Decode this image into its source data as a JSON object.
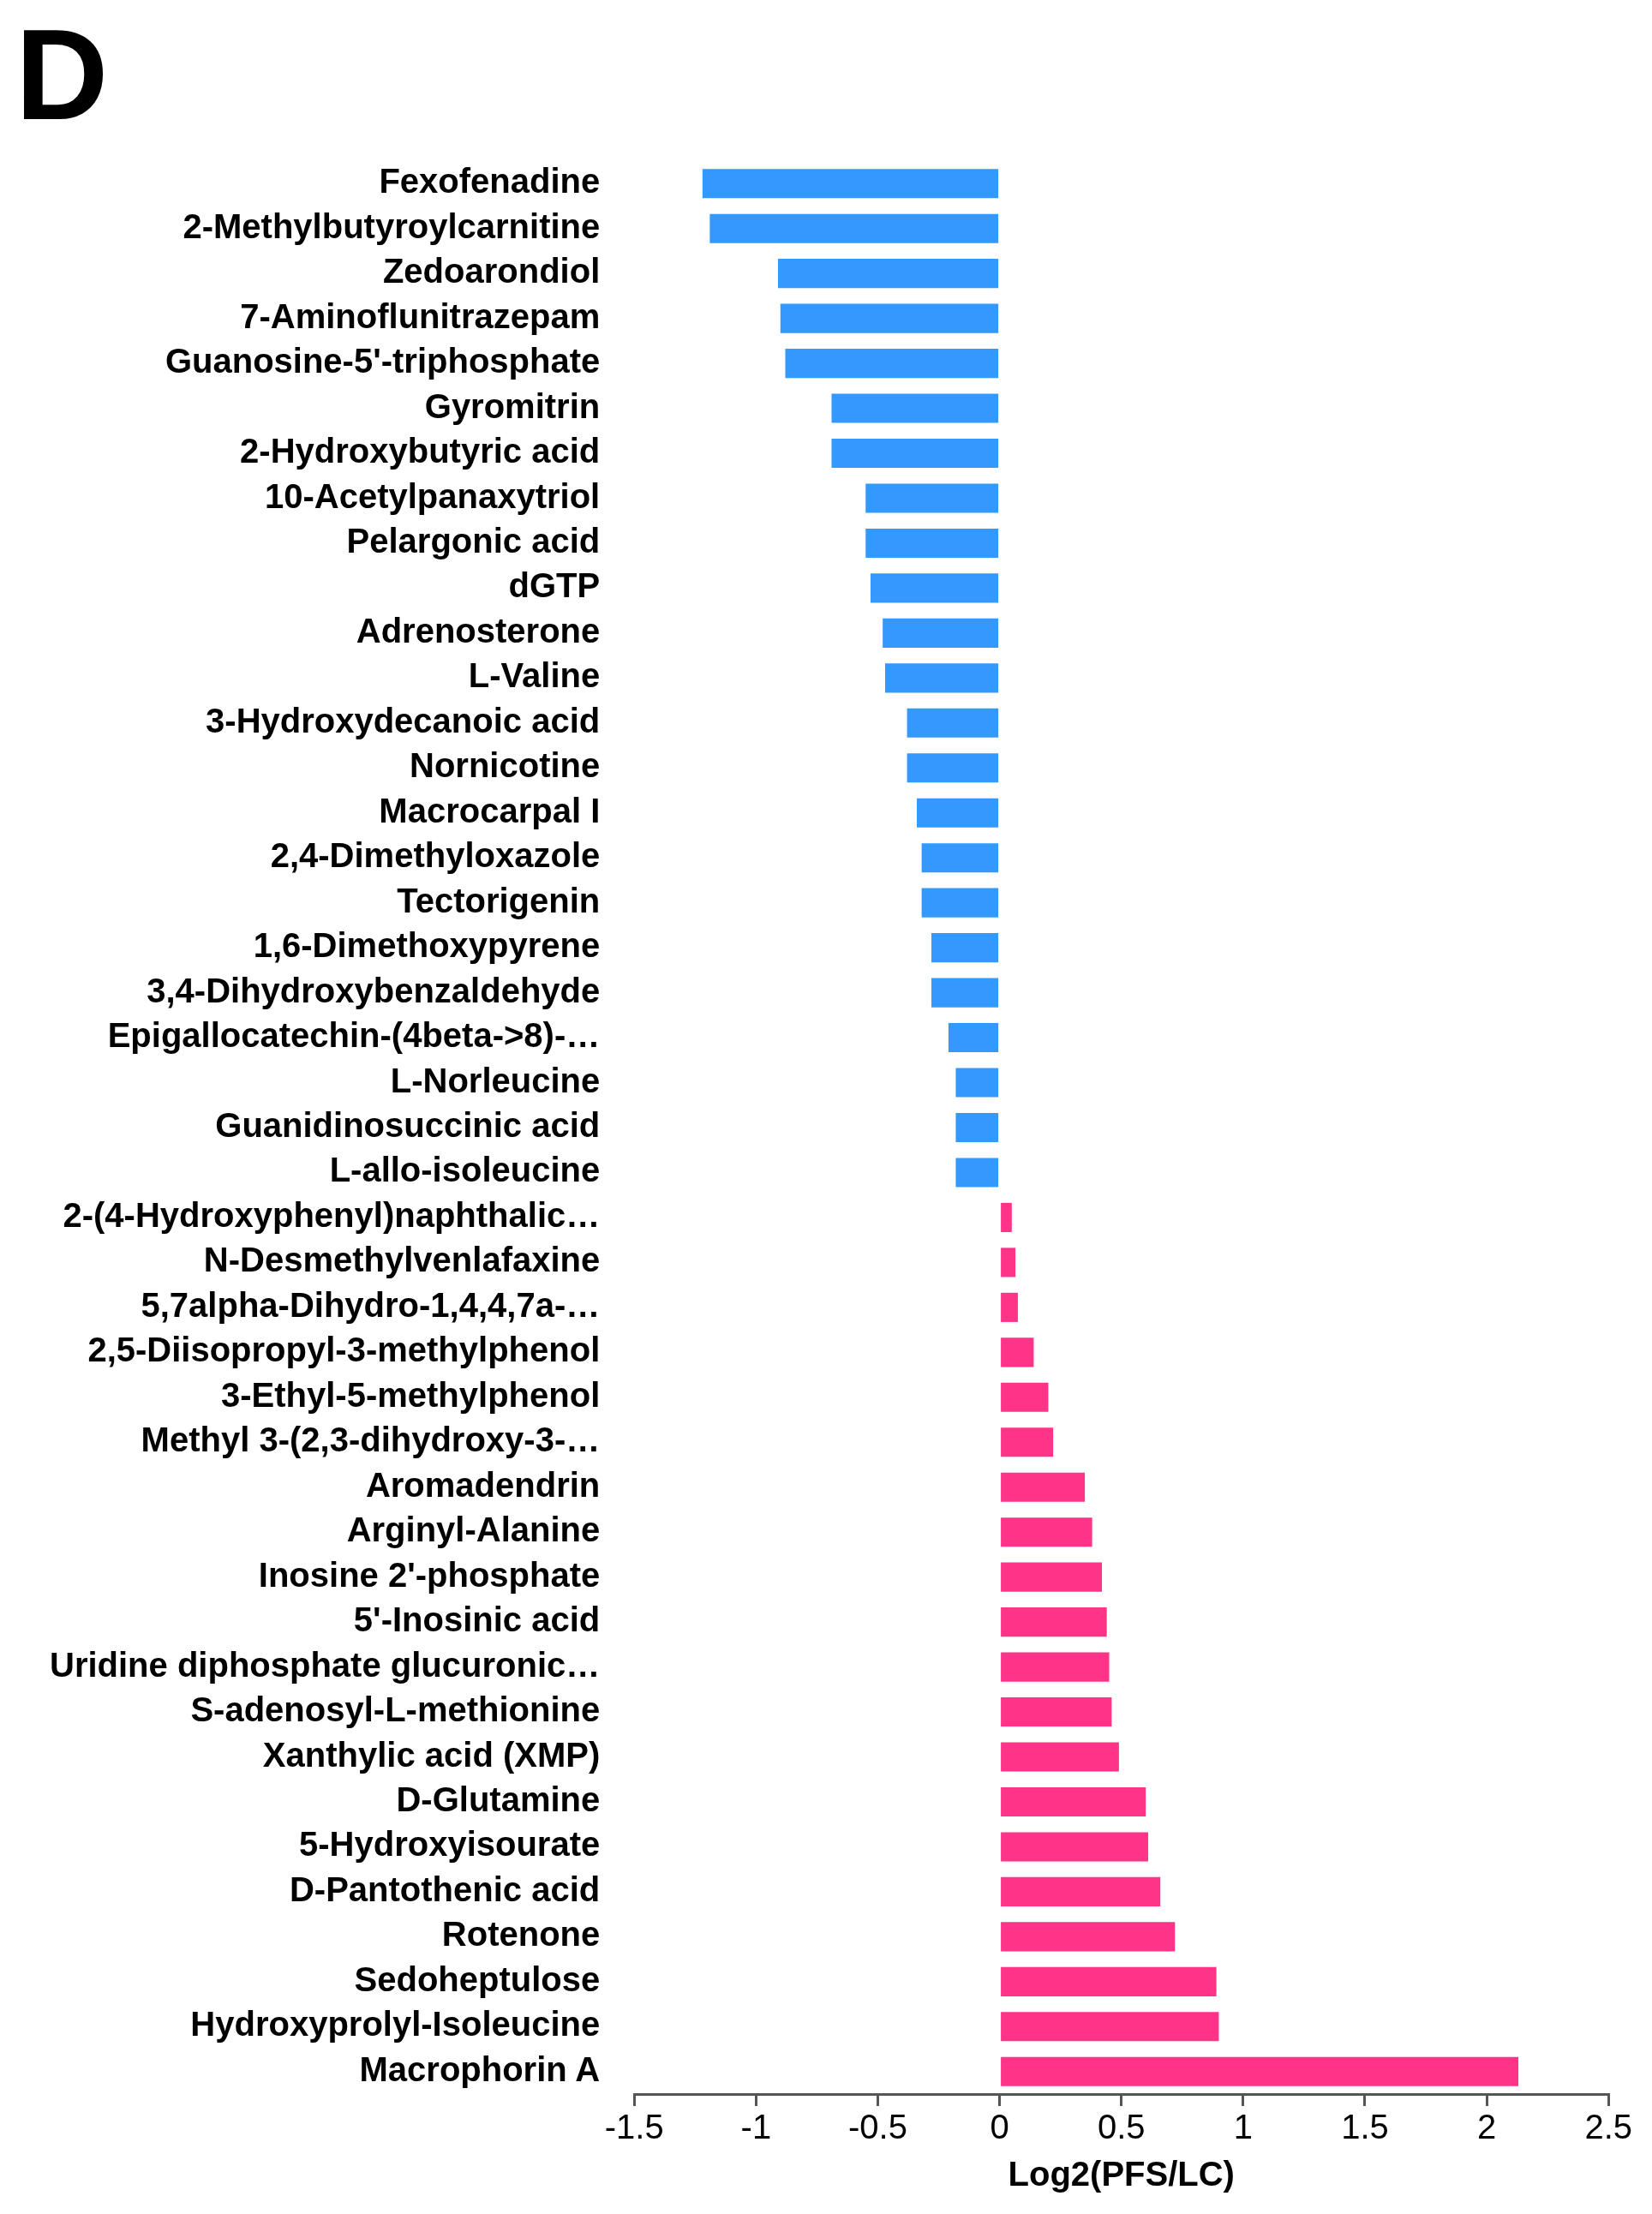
{
  "chart_data": {
    "type": "bar",
    "orientation": "horizontal",
    "title": "D",
    "xlabel": "Log2(PFS/LC)",
    "categories": [
      "Fexofenadine",
      "2-Methylbutyroylcarnitine",
      "Zedoarondiol",
      "7-Aminoflunitrazepam",
      "Guanosine-5'-triphosphate",
      "Gyromitrin",
      "2-Hydroxybutyric acid",
      "10-Acetylpanaxytriol",
      "Pelargonic acid",
      "dGTP",
      "Adrenosterone",
      "L-Valine",
      "3-Hydroxydecanoic acid",
      "Nornicotine",
      "Macrocarpal I",
      "2,4-Dimethyloxazole",
      "Tectorigenin",
      "1,6-Dimethoxypyrene",
      "3,4-Dihydroxybenzaldehyde",
      "Epigallocatechin-(4beta->8)-…",
      "L-Norleucine",
      "Guanidinosuccinic acid",
      "L-allo-isoleucine",
      "2-(4-Hydroxyphenyl)naphthalic…",
      "N-Desmethylvenlafaxine",
      "5,7alpha-Dihydro-1,4,4,7a-…",
      "2,5-Diisopropyl-3-methylphenol",
      "3-Ethyl-5-methylphenol",
      "Methyl 3-(2,3-dihydroxy-3-…",
      "Aromadendrin",
      "Arginyl-Alanine",
      "Inosine 2'-phosphate",
      "5'-Inosinic acid",
      "Uridine diphosphate glucuronic…",
      "S-adenosyl-L-methionine",
      "Xanthylic acid (XMP)",
      "D-Glutamine",
      "5-Hydroxyisourate",
      "D-Pantothenic acid",
      "Rotenone",
      "Sedoheptulose",
      "Hydroxyprolyl-Isoleucine",
      "Macrophorin A"
    ],
    "values": [
      -1.22,
      -1.19,
      -0.91,
      -0.9,
      -0.88,
      -0.69,
      -0.69,
      -0.55,
      -0.55,
      -0.53,
      -0.48,
      -0.47,
      -0.38,
      -0.38,
      -0.34,
      -0.32,
      -0.32,
      -0.28,
      -0.28,
      -0.21,
      -0.18,
      -0.18,
      -0.18,
      0.05,
      0.065,
      0.075,
      0.14,
      0.2,
      0.22,
      0.35,
      0.38,
      0.42,
      0.44,
      0.45,
      0.46,
      0.49,
      0.6,
      0.61,
      0.66,
      0.72,
      0.89,
      0.9,
      2.13
    ],
    "colors": [
      "#3399ff",
      "#3399ff",
      "#3399ff",
      "#3399ff",
      "#3399ff",
      "#3399ff",
      "#3399ff",
      "#3399ff",
      "#3399ff",
      "#3399ff",
      "#3399ff",
      "#3399ff",
      "#3399ff",
      "#3399ff",
      "#3399ff",
      "#3399ff",
      "#3399ff",
      "#3399ff",
      "#3399ff",
      "#3399ff",
      "#3399ff",
      "#3399ff",
      "#3399ff",
      "#ff3388",
      "#ff3388",
      "#ff3388",
      "#ff3388",
      "#ff3388",
      "#ff3388",
      "#ff3388",
      "#ff3388",
      "#ff3388",
      "#ff3388",
      "#ff3388",
      "#ff3388",
      "#ff3388",
      "#ff3388",
      "#ff3388",
      "#ff3388",
      "#ff3388",
      "#ff3388",
      "#ff3388",
      "#ff3388"
    ],
    "xlim": [
      -1.5,
      2.5
    ],
    "xticks": [
      -1.5,
      -1,
      -0.5,
      0,
      0.5,
      1,
      1.5,
      2,
      2.5
    ],
    "legend": false
  }
}
